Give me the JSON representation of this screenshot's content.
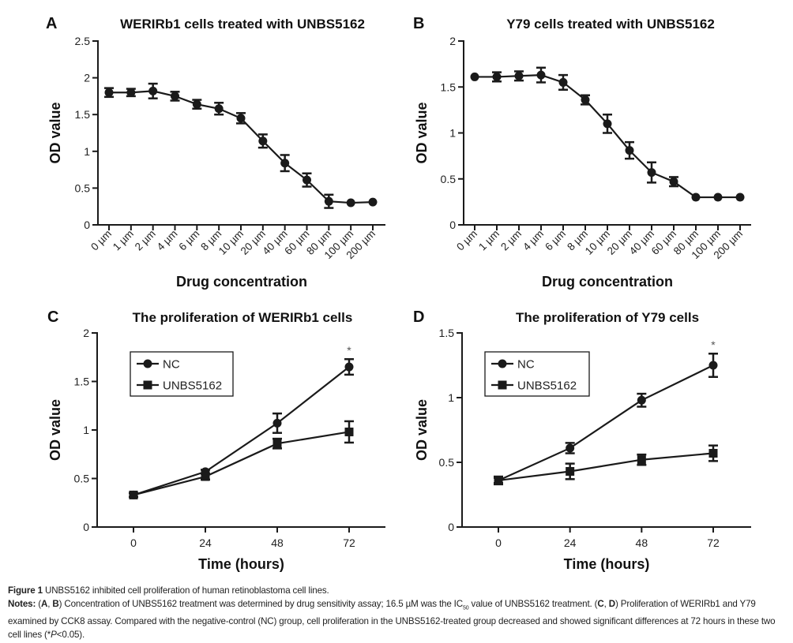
{
  "chart_data": [
    {
      "panel": "A",
      "type": "line",
      "title": "WERIRb1 cells treated with UNBS5162",
      "xlabel": "Drug concentration",
      "ylabel": "OD value",
      "categories": [
        "0 µm",
        "1 µm",
        "2 µm",
        "4 µm",
        "6 µm",
        "8 µm",
        "10 µm",
        "20 µm",
        "40 µm",
        "60 µm",
        "80 µm",
        "100 µm",
        "200 µm"
      ],
      "ylim": [
        0,
        2.5
      ],
      "yticks": [
        "0",
        "0.5",
        "1",
        "1.5",
        "2",
        "2.5"
      ],
      "grid": false,
      "series": [
        {
          "name": "WERIRb1",
          "marker": "circle",
          "values": [
            1.8,
            1.8,
            1.82,
            1.75,
            1.64,
            1.58,
            1.45,
            1.14,
            0.84,
            0.61,
            0.32,
            0.3,
            0.31
          ],
          "errors": [
            0.06,
            0.05,
            0.1,
            0.06,
            0.06,
            0.08,
            0.07,
            0.09,
            0.11,
            0.09,
            0.09,
            0,
            0
          ]
        }
      ]
    },
    {
      "panel": "B",
      "type": "line",
      "title": "Y79 cells treated with UNBS5162",
      "xlabel": "Drug concentration",
      "ylabel": "OD value",
      "categories": [
        "0 µm",
        "1 µm",
        "2 µm",
        "4 µm",
        "6 µm",
        "8 µm",
        "10 µm",
        "20 µm",
        "40 µm",
        "60 µm",
        "80 µm",
        "100 µm",
        "200 µm"
      ],
      "ylim": [
        0,
        2
      ],
      "yticks": [
        "0",
        "0.5",
        "1",
        "1.5",
        "2"
      ],
      "grid": false,
      "series": [
        {
          "name": "Y79",
          "marker": "circle",
          "values": [
            1.61,
            1.61,
            1.62,
            1.63,
            1.55,
            1.36,
            1.1,
            0.81,
            0.57,
            0.47,
            0.3,
            0.3,
            0.3
          ],
          "errors": [
            0,
            0.05,
            0.05,
            0.08,
            0.08,
            0.05,
            0.1,
            0.09,
            0.11,
            0.05,
            0,
            0,
            0
          ]
        }
      ]
    },
    {
      "panel": "C",
      "type": "line",
      "title": "The proliferation of WERIRb1 cells",
      "xlabel": "Time (hours)",
      "ylabel": "OD value",
      "categories": [
        "0",
        "24",
        "48",
        "72"
      ],
      "ylim": [
        0,
        2
      ],
      "yticks": [
        "0",
        "0.5",
        "1",
        "1.5",
        "2"
      ],
      "grid": false,
      "legend_position": "top-left",
      "annotation": {
        "text": "*",
        "at": "72"
      },
      "series": [
        {
          "name": "NC",
          "marker": "circle",
          "values": [
            0.33,
            0.57,
            1.07,
            1.65
          ],
          "errors": [
            0.02,
            0.02,
            0.1,
            0.08
          ]
        },
        {
          "name": "UNBS5162",
          "marker": "square",
          "values": [
            0.33,
            0.52,
            0.86,
            0.98
          ],
          "errors": [
            0.02,
            0.03,
            0.05,
            0.11
          ]
        }
      ]
    },
    {
      "panel": "D",
      "type": "line",
      "title": "The proliferation of Y79 cells",
      "xlabel": "Time (hours)",
      "ylabel": "OD value",
      "categories": [
        "0",
        "24",
        "48",
        "72"
      ],
      "ylim": [
        0,
        1.5
      ],
      "yticks": [
        "0",
        "0.5",
        "1",
        "1.5"
      ],
      "grid": false,
      "legend_position": "top-left",
      "annotation": {
        "text": "*",
        "at": "72"
      },
      "series": [
        {
          "name": "NC",
          "marker": "circle",
          "values": [
            0.36,
            0.61,
            0.98,
            1.25
          ],
          "errors": [
            0.02,
            0.04,
            0.05,
            0.09
          ]
        },
        {
          "name": "UNBS5162",
          "marker": "square",
          "values": [
            0.36,
            0.43,
            0.52,
            0.57
          ],
          "errors": [
            0.03,
            0.06,
            0.04,
            0.06
          ]
        }
      ]
    }
  ],
  "caption": {
    "figure_label": "Figure 1",
    "figure_title": "UNBS5162 inhibited cell proliferation of human retinoblastoma cell lines.",
    "notes_label": "Notes:",
    "notes_parts": [
      "(",
      "A",
      ", ",
      "B",
      ") Concentration of UNBS5162 treatment was determined by drug sensitivity assay; 16.5 µM was the IC",
      "50",
      " value of UNBS5162 treatment. (",
      "C",
      ", ",
      "D",
      ") Proliferation of WERIRb1 and Y79 examined by CCK8 assay. Compared with the negative-control (NC) group, cell proliferation in the UNBS5162-treated group decreased and showed significant differences at 72 hours in these two cell lines (*",
      "P",
      "<0.05)."
    ]
  }
}
